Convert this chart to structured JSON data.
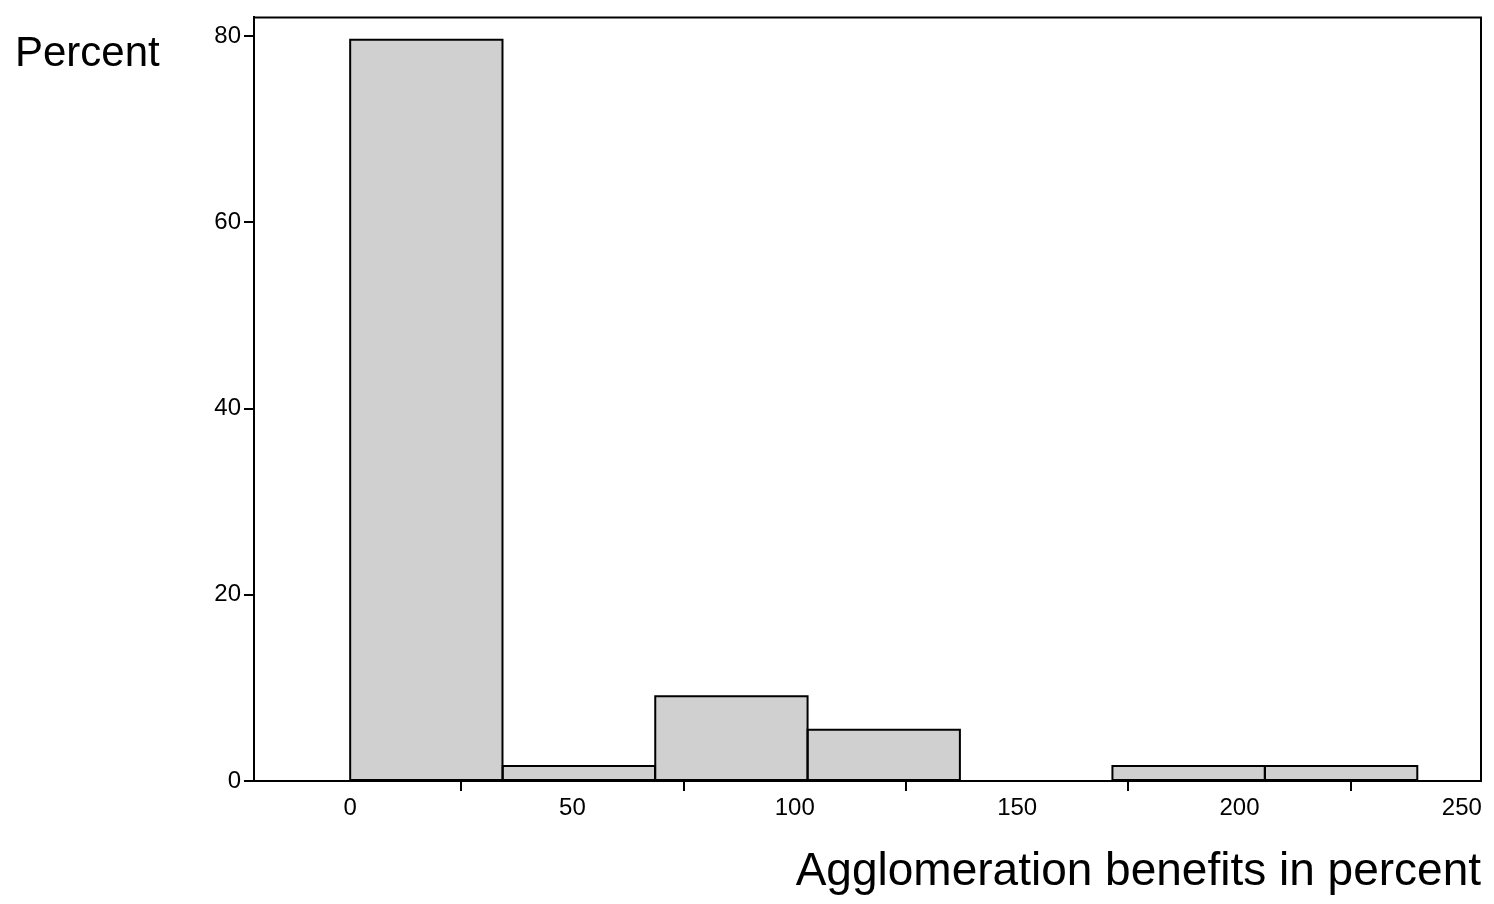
{
  "chart_data": {
    "type": "histogram",
    "xlabel": "Agglomeration benefits in percent",
    "ylabel": "Percent",
    "bins": [
      0,
      34.3,
      68.6,
      102.9,
      137.1,
      171.4,
      205.7,
      240
    ],
    "values": [
      79.6,
      1.6,
      9.1,
      5.5,
      0,
      1.6,
      1.6
    ],
    "color": "#d0d0d0",
    "xlim": [
      -21.6,
      254.3
    ],
    "xticks": [
      0,
      50,
      100,
      150,
      200,
      250
    ],
    "ylim": [
      0,
      82
    ],
    "yticks": [
      0,
      20,
      40,
      60,
      80
    ],
    "grid": false,
    "legend": false
  }
}
